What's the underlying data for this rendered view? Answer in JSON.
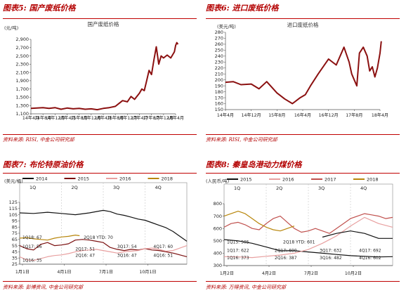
{
  "chart_data": [
    {
      "id": "c1",
      "type": "line",
      "fig_title": "图表5: 国产废纸价格",
      "title": "国产废纸价格",
      "ylabel": "(元/吨)",
      "source": "资料来源: RISI, 中金公司研究部",
      "ylim": [
        1100,
        2900
      ],
      "yticks": [
        "1,100",
        "1,300",
        "1,500",
        "1,700",
        "1,900",
        "2,100",
        "2,300",
        "2,500",
        "2,700",
        "2,900"
      ],
      "xticks": [
        "14年4月",
        "14年8月",
        "14年12月",
        "15年4月",
        "15年8月",
        "15年12月",
        "16年4月",
        "16年8月",
        "16年12月",
        "17年4月",
        "17年8月",
        "17年12月",
        "18年4月"
      ],
      "color": "#8b1010",
      "series": [
        {
          "x": [
            0,
            0.5,
            1,
            1.5,
            2,
            2.5,
            3,
            3.5,
            4,
            4.5,
            5,
            5.5,
            6,
            6.5,
            7,
            7.3,
            7.6,
            8,
            8.3,
            8.6,
            9,
            9.2,
            9.4,
            9.6,
            9.8,
            10,
            10.2,
            10.4,
            10.6,
            10.8,
            11,
            11.3,
            11.6,
            11.9,
            12,
            12.1,
            12.2
          ],
          "values": [
            1230,
            1240,
            1250,
            1230,
            1250,
            1210,
            1240,
            1220,
            1230,
            1210,
            1220,
            1200,
            1230,
            1250,
            1280,
            1350,
            1420,
            1390,
            1520,
            1450,
            1600,
            1700,
            1660,
            1900,
            2150,
            2050,
            2400,
            2720,
            2300,
            2500,
            2450,
            2520,
            2450,
            2600,
            2750,
            2820,
            2780
          ]
        }
      ]
    },
    {
      "id": "c2",
      "type": "line",
      "fig_title": "图表6: 进口废纸价格",
      "title": "进口废纸价格",
      "ylabel": "(美元/吨)",
      "source": "资料来源: RISI, 中金公司研究部",
      "ylim": [
        150,
        280
      ],
      "yticks": [
        "150",
        "160",
        "170",
        "180",
        "190",
        "200",
        "210",
        "220",
        "230",
        "240",
        "250",
        "260",
        "270",
        "280"
      ],
      "xticks": [
        "14年4月",
        "14年12月",
        "15年8月",
        "16年4月",
        "16年12月",
        "17年8月",
        "18年4月"
      ],
      "color": "#8b1010",
      "series": [
        {
          "x": [
            0,
            0.3,
            0.6,
            1,
            1.3,
            1.6,
            2,
            2.3,
            2.6,
            2.9,
            3.1,
            3.3,
            3.6,
            4,
            4.3,
            4.6,
            4.8,
            4.9,
            5,
            5.1,
            5.2,
            5.35,
            5.5,
            5.6,
            5.7,
            5.8,
            5.9,
            6,
            6.05
          ],
          "values": [
            196,
            197,
            192,
            193,
            185,
            197,
            178,
            168,
            160,
            170,
            175,
            190,
            210,
            235,
            225,
            255,
            230,
            210,
            200,
            190,
            245,
            255,
            240,
            215,
            222,
            205,
            220,
            245,
            265
          ]
        }
      ]
    },
    {
      "id": "c3",
      "type": "line",
      "fig_title": "图表7: 布伦特原油价格",
      "ylabel": "(美元/桶)",
      "source": "资料来源: 彭博资讯, 中金公司研究部",
      "ylim": [
        25,
        125
      ],
      "yticks": [
        "25",
        "35",
        "45",
        "55",
        "65",
        "75",
        "85",
        "95",
        "105",
        "115",
        "125"
      ],
      "xticks": [
        "1月1日",
        "4月1日",
        "7月1日",
        "10月1日"
      ],
      "xlim": [
        0,
        12
      ],
      "legend": [
        {
          "name": "2014",
          "color": "#111111"
        },
        {
          "name": "2015",
          "color": "#7a0f0f"
        },
        {
          "name": "2016",
          "color": "#e8a0a0"
        },
        {
          "name": "2018",
          "color": "#b8860b"
        }
      ],
      "quarters": [
        "1Q",
        "2Q",
        "3Q",
        "4Q"
      ],
      "annotations": [
        {
          "text": "1Q18: 67",
          "x": 0.2,
          "y": 66
        },
        {
          "text": "2Q18 YTD: 70",
          "x": 4.6,
          "y": 66
        },
        {
          "text": "1Q17: 56",
          "x": 0.2,
          "y": 51
        },
        {
          "text": "2Q17: 51",
          "x": 4.0,
          "y": 47
        },
        {
          "text": "3Q17: 54",
          "x": 7.0,
          "y": 51
        },
        {
          "text": "4Q17: 60",
          "x": 9.6,
          "y": 51
        },
        {
          "text": "1Q16: 35",
          "x": 0.2,
          "y": 29
        },
        {
          "text": "2Q16: 47",
          "x": 4.0,
          "y": 37
        },
        {
          "text": "3Q16: 47",
          "x": 7.0,
          "y": 37
        },
        {
          "text": "4Q16: 51",
          "x": 9.6,
          "y": 37
        }
      ],
      "series": [
        {
          "color": "#111111",
          "x": [
            0,
            1,
            2,
            3,
            4,
            5,
            6,
            6.5,
            7,
            7.5,
            8,
            8.5,
            9,
            9.5,
            10,
            10.5,
            11,
            11.5,
            12
          ],
          "values": [
            108,
            107,
            109,
            107,
            105,
            108,
            112,
            110,
            106,
            104,
            101,
            98,
            96,
            92,
            88,
            84,
            78,
            70,
            62
          ]
        },
        {
          "color": "#7a0f0f",
          "x": [
            0,
            0.5,
            1,
            1.5,
            2,
            2.5,
            3,
            3.5,
            4,
            4.5,
            5,
            5.5,
            6,
            6.5,
            7,
            7.5,
            8,
            8.5,
            9,
            9.5,
            10,
            10.5,
            11,
            11.5,
            12
          ],
          "values": [
            55,
            50,
            48,
            57,
            60,
            55,
            56,
            58,
            64,
            65,
            64,
            62,
            60,
            52,
            49,
            47,
            49,
            48,
            50,
            48,
            47,
            45,
            43,
            40,
            37
          ]
        },
        {
          "color": "#e8a0a0",
          "x": [
            0,
            0.5,
            1,
            1.5,
            2,
            2.5,
            3,
            3.5,
            4,
            4.5,
            5,
            5.5,
            6,
            6.5,
            7,
            7.5,
            8,
            8.5,
            9,
            9.5,
            10,
            10.5,
            11,
            11.5,
            12
          ],
          "values": [
            37,
            32,
            31,
            34,
            37,
            39,
            40,
            42,
            45,
            47,
            48,
            49,
            47,
            45,
            43,
            45,
            46,
            47,
            50,
            51,
            49,
            46,
            47,
            51,
            55
          ]
        },
        {
          "color": "#b8860b",
          "x": [
            0,
            0.5,
            1,
            1.5,
            2,
            2.5,
            3,
            3.5,
            4,
            4.3
          ],
          "values": [
            67,
            68,
            66,
            65,
            64,
            67,
            69,
            70,
            72,
            71
          ]
        }
      ]
    },
    {
      "id": "c4",
      "type": "line",
      "fig_title": "图表8: 秦皇岛港动力煤价格",
      "ylabel": "(人民币/吨)",
      "source": "资料来源: 万得资讯, 中金公司研究部",
      "ylim": [
        300,
        800
      ],
      "yticks": [
        "300",
        "400",
        "500",
        "600",
        "700",
        "800"
      ],
      "xticks": [
        "1月2日",
        "4月2日",
        "7月2日",
        "10月2日"
      ],
      "xlim": [
        0,
        12
      ],
      "legend": [
        {
          "name": "2015",
          "color": "#111111"
        },
        {
          "name": "2016",
          "color": "#e8a0a0"
        },
        {
          "name": "2017",
          "color": "#c0504d"
        },
        {
          "name": "2018",
          "color": "#b8860b"
        }
      ],
      "quarters": [
        "1Q",
        "2Q",
        "3Q",
        "4Q"
      ],
      "annotations": [
        {
          "text": "1Q15: 505",
          "x": 0.2,
          "y": 480
        },
        {
          "text": "2Q18 YTD: 601",
          "x": 4.2,
          "y": 480
        },
        {
          "text": "1Q17: 622",
          "x": 0.2,
          "y": 410
        },
        {
          "text": "2Q17: 600",
          "x": 3.6,
          "y": 410
        },
        {
          "text": "3Q17: 632",
          "x": 6.8,
          "y": 410
        },
        {
          "text": "4Q17: 692",
          "x": 9.6,
          "y": 410
        },
        {
          "text": "1Q16: 373",
          "x": 0.2,
          "y": 352
        },
        {
          "text": "2Q16: 387",
          "x": 3.6,
          "y": 352
        },
        {
          "text": "3Q16: 482",
          "x": 6.8,
          "y": 352
        },
        {
          "text": "4Q16: 602",
          "x": 9.6,
          "y": 352
        }
      ],
      "series": [
        {
          "color": "#111111",
          "x": [
            0,
            1,
            2,
            3,
            4,
            5,
            6,
            7,
            8,
            9,
            10,
            11,
            12
          ],
          "values": [
            510,
            500,
            480,
            450,
            420,
            420,
            410,
            400,
            390,
            380,
            375,
            370,
            372
          ]
        },
        {
          "color": "#e8a0a0",
          "x": [
            0,
            1,
            2,
            3,
            4,
            5,
            6,
            7,
            8,
            9,
            10,
            11,
            12
          ],
          "values": [
            372,
            370,
            365,
            375,
            385,
            400,
            430,
            480,
            540,
            620,
            690,
            640,
            610
          ]
        },
        {
          "color": "#c0504d",
          "x": [
            0,
            0.5,
            1,
            1.5,
            2,
            2.5,
            3,
            3.5,
            4,
            4.5,
            5,
            5.5,
            6,
            6.5,
            7,
            7.5,
            8,
            8.5,
            9,
            9.5,
            10,
            10.5,
            11,
            11.5,
            12
          ],
          "values": [
            610,
            640,
            650,
            630,
            600,
            590,
            640,
            680,
            700,
            650,
            600,
            570,
            580,
            600,
            580,
            560,
            600,
            640,
            680,
            700,
            720,
            710,
            700,
            680,
            690
          ]
        },
        {
          "color": "#b8860b",
          "x": [
            0,
            0.5,
            1,
            1.5,
            2,
            2.5,
            3,
            3.5,
            4,
            4.5,
            5
          ],
          "values": [
            700,
            720,
            740,
            720,
            680,
            640,
            610,
            590,
            580,
            600,
            620
          ]
        },
        {
          "color": "#111111",
          "x": [
            7,
            8,
            9,
            10,
            11,
            12
          ],
          "values": [
            530,
            560,
            580,
            560,
            520,
            520
          ]
        }
      ]
    }
  ]
}
